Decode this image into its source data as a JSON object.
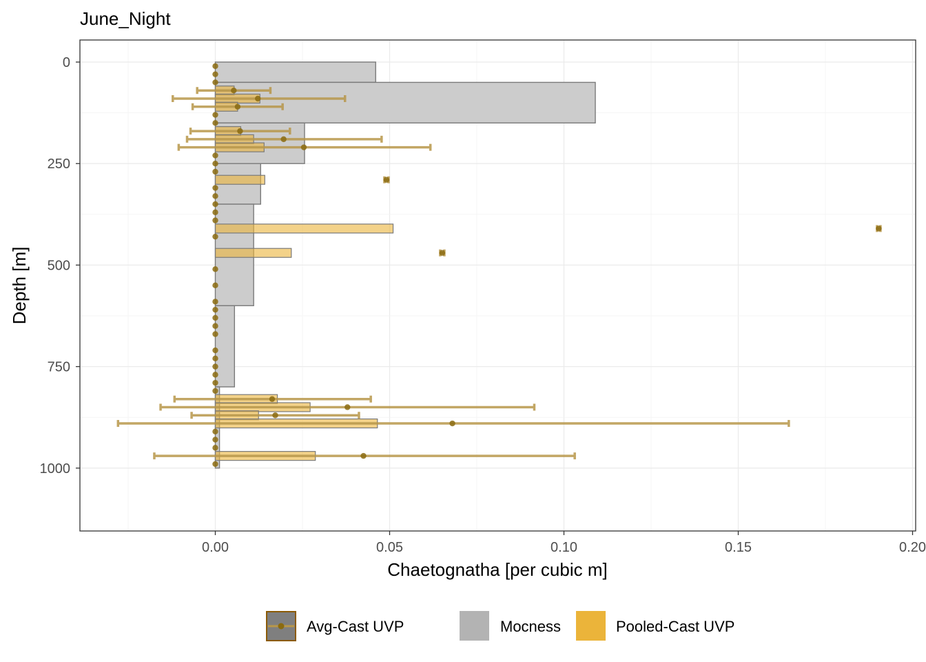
{
  "chart_data": {
    "type": "bar",
    "title": "June_Night",
    "xlabel": "Chaetognatha [per cubic m]",
    "ylabel": "Depth [m]",
    "xlim": [
      -0.039,
      0.2
    ],
    "ylim": [
      1048,
      -50
    ],
    "x_ticks": [
      0.0,
      0.05,
      0.1,
      0.15,
      0.2
    ],
    "x_tick_labels": [
      "0.00",
      "0.05",
      "0.10",
      "0.15",
      "0.20"
    ],
    "y_ticks": [
      0,
      250,
      500,
      750,
      1000
    ],
    "y_tick_labels": [
      "0",
      "250",
      "500",
      "750",
      "1000"
    ],
    "grid": true,
    "legend_position": "bottom",
    "legend": [
      {
        "label": "Avg-Cast UVP",
        "key": "avg"
      },
      {
        "label": "Mocness",
        "key": "mocness"
      },
      {
        "label": "Pooled-Cast UVP",
        "key": "pooled"
      }
    ],
    "colors": {
      "mocness_fill": "#cccccc",
      "mocness_stroke": "#7a7a7a",
      "pooled_fill": "#ebb43a",
      "avg_point": "#8b6b10",
      "errorbar": "#b8974a",
      "legend_mocness": "#b3b3b3",
      "legend_pooled": "#ebb43a",
      "legend_avg_fill": "#7f7f7f",
      "legend_avg_stroke": "#8b5a00"
    },
    "mocness": [
      {
        "depth_top": 0,
        "depth_bottom": 50,
        "value": 0.046
      },
      {
        "depth_top": 50,
        "depth_bottom": 150,
        "value": 0.109
      },
      {
        "depth_top": 150,
        "depth_bottom": 250,
        "value": 0.0256
      },
      {
        "depth_top": 250,
        "depth_bottom": 350,
        "value": 0.013
      },
      {
        "depth_top": 350,
        "depth_bottom": 600,
        "value": 0.011
      },
      {
        "depth_top": 600,
        "depth_bottom": 800,
        "value": 0.0055
      },
      {
        "depth_top": 800,
        "depth_bottom": 1000,
        "value": 0.0012
      }
    ],
    "pooled_uvp": [
      {
        "depth": 70,
        "value": 0.0054
      },
      {
        "depth": 90,
        "value": 0.0128
      },
      {
        "depth": 110,
        "value": 0.0064
      },
      {
        "depth": 170,
        "value": 0.0073
      },
      {
        "depth": 190,
        "value": 0.011
      },
      {
        "depth": 210,
        "value": 0.014
      },
      {
        "depth": 290,
        "value": 0.0142
      },
      {
        "depth": 410,
        "value": 0.051
      },
      {
        "depth": 470,
        "value": 0.0218
      },
      {
        "depth": 830,
        "value": 0.0178
      },
      {
        "depth": 850,
        "value": 0.0272
      },
      {
        "depth": 870,
        "value": 0.0124
      },
      {
        "depth": 890,
        "value": 0.0465
      },
      {
        "depth": 970,
        "value": 0.0287
      }
    ],
    "avg_cast_uvp": [
      {
        "depth": 10,
        "mean": 0.0,
        "lo": 0.0,
        "hi": 0.0
      },
      {
        "depth": 30,
        "mean": 0.0,
        "lo": 0.0,
        "hi": 0.0
      },
      {
        "depth": 50,
        "mean": 0.0,
        "lo": 0.0,
        "hi": 0.0
      },
      {
        "depth": 70,
        "mean": 0.0053,
        "lo": -0.0052,
        "hi": 0.0158
      },
      {
        "depth": 90,
        "mean": 0.0122,
        "lo": -0.0122,
        "hi": 0.0372
      },
      {
        "depth": 110,
        "mean": 0.0064,
        "lo": -0.0065,
        "hi": 0.0193
      },
      {
        "depth": 130,
        "mean": 0.0,
        "lo": 0.0,
        "hi": 0.0
      },
      {
        "depth": 150,
        "mean": 0.0,
        "lo": 0.0,
        "hi": 0.0
      },
      {
        "depth": 170,
        "mean": 0.0071,
        "lo": -0.0071,
        "hi": 0.0214
      },
      {
        "depth": 190,
        "mean": 0.0196,
        "lo": -0.0081,
        "hi": 0.0477
      },
      {
        "depth": 210,
        "mean": 0.0254,
        "lo": -0.0105,
        "hi": 0.0617
      },
      {
        "depth": 230,
        "mean": 0.0,
        "lo": 0.0,
        "hi": 0.0
      },
      {
        "depth": 250,
        "mean": 0.0,
        "lo": 0.0,
        "hi": 0.0
      },
      {
        "depth": 270,
        "mean": 0.0,
        "lo": 0.0,
        "hi": 0.0
      },
      {
        "depth": 290,
        "mean": 0.0491,
        "lo": 0.0485,
        "hi": 0.0497
      },
      {
        "depth": 310,
        "mean": 0.0,
        "lo": 0.0,
        "hi": 0.0
      },
      {
        "depth": 330,
        "mean": 0.0,
        "lo": 0.0,
        "hi": 0.0
      },
      {
        "depth": 350,
        "mean": 0.0,
        "lo": 0.0,
        "hi": 0.0
      },
      {
        "depth": 370,
        "mean": 0.0,
        "lo": 0.0,
        "hi": 0.0
      },
      {
        "depth": 390,
        "mean": 0.0,
        "lo": 0.0,
        "hi": 0.0
      },
      {
        "depth": 410,
        "mean": 0.1903,
        "lo": 0.1898,
        "hi": 0.1908
      },
      {
        "depth": 430,
        "mean": 0.0,
        "lo": 0.0,
        "hi": 0.0
      },
      {
        "depth": 470,
        "mean": 0.0651,
        "lo": 0.0645,
        "hi": 0.0657
      },
      {
        "depth": 510,
        "mean": 0.0,
        "lo": 0.0,
        "hi": 0.0
      },
      {
        "depth": 550,
        "mean": 0.0,
        "lo": 0.0,
        "hi": 0.0
      },
      {
        "depth": 590,
        "mean": 0.0,
        "lo": 0.0,
        "hi": 0.0
      },
      {
        "depth": 610,
        "mean": 0.0,
        "lo": 0.0,
        "hi": 0.0
      },
      {
        "depth": 630,
        "mean": 0.0,
        "lo": 0.0,
        "hi": 0.0
      },
      {
        "depth": 650,
        "mean": 0.0,
        "lo": 0.0,
        "hi": 0.0
      },
      {
        "depth": 670,
        "mean": 0.0,
        "lo": 0.0,
        "hi": 0.0
      },
      {
        "depth": 710,
        "mean": 0.0,
        "lo": 0.0,
        "hi": 0.0
      },
      {
        "depth": 730,
        "mean": 0.0,
        "lo": 0.0,
        "hi": 0.0
      },
      {
        "depth": 750,
        "mean": 0.0,
        "lo": 0.0,
        "hi": 0.0
      },
      {
        "depth": 770,
        "mean": 0.0,
        "lo": 0.0,
        "hi": 0.0
      },
      {
        "depth": 790,
        "mean": 0.0,
        "lo": 0.0,
        "hi": 0.0
      },
      {
        "depth": 810,
        "mean": 0.0,
        "lo": 0.0,
        "hi": 0.0
      },
      {
        "depth": 830,
        "mean": 0.0163,
        "lo": -0.0117,
        "hi": 0.0446
      },
      {
        "depth": 850,
        "mean": 0.0379,
        "lo": -0.0157,
        "hi": 0.0915
      },
      {
        "depth": 870,
        "mean": 0.0172,
        "lo": -0.0068,
        "hi": 0.0412
      },
      {
        "depth": 890,
        "mean": 0.068,
        "lo": -0.0279,
        "hi": 0.1645
      },
      {
        "depth": 910,
        "mean": 0.0,
        "lo": 0.0,
        "hi": 0.0
      },
      {
        "depth": 930,
        "mean": 0.0,
        "lo": 0.0,
        "hi": 0.0
      },
      {
        "depth": 950,
        "mean": 0.0,
        "lo": 0.0,
        "hi": 0.0
      },
      {
        "depth": 970,
        "mean": 0.0425,
        "lo": -0.0175,
        "hi": 0.1031
      },
      {
        "depth": 990,
        "mean": 0.0,
        "lo": 0.0,
        "hi": 0.0
      }
    ]
  }
}
